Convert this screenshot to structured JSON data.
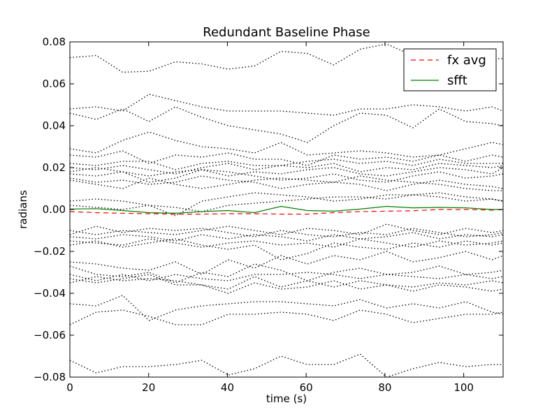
{
  "chart_data": {
    "type": "line",
    "title": "Redundant Baseline Phase",
    "xlabel": "time (s)",
    "ylabel": "radians",
    "xlim": [
      0,
      110
    ],
    "ylim": [
      -0.08,
      0.08
    ],
    "xticks": [
      0,
      20,
      40,
      60,
      80,
      100
    ],
    "yticks": [
      -0.08,
      -0.06,
      -0.04,
      -0.02,
      0.0,
      0.02,
      0.04,
      0.06,
      0.08
    ],
    "xtick_labels": [
      "0",
      "20",
      "40",
      "60",
      "80",
      "100"
    ],
    "ytick_labels": [
      "−0.08",
      "−0.06",
      "−0.04",
      "−0.02",
      "0.00",
      "0.02",
      "0.04",
      "0.06",
      "0.08"
    ],
    "grid": false,
    "legend_position": "top-right",
    "legend": [
      {
        "label": "fx avg",
        "style": "dashed",
        "color": "#ff0000"
      },
      {
        "label": "sfft",
        "style": "solid",
        "color": "#008000"
      }
    ],
    "x": [
      0,
      6.7,
      13.4,
      20.1,
      26.8,
      33.5,
      40.2,
      46.9,
      53.6,
      60.3,
      67,
      73.7,
      80.4,
      87.1,
      93.8,
      100.5,
      107.2,
      110
    ],
    "series": [
      {
        "name": "fx avg",
        "style": "dashed",
        "color": "#ff0000",
        "values": [
          -0.001,
          -0.0015,
          -0.0018,
          -0.002,
          -0.0022,
          -0.0022,
          -0.002,
          -0.002,
          -0.0022,
          -0.0022,
          -0.0015,
          -0.001,
          -0.0008,
          -0.0006,
          0.0,
          0.0,
          -0.0003,
          0.0
        ]
      },
      {
        "name": "sfft",
        "style": "solid",
        "color": "#008000",
        "values": [
          0.0002,
          0.0004,
          -0.0005,
          -0.0015,
          -0.0018,
          -0.001,
          -0.0005,
          -0.0015,
          0.0015,
          -0.0005,
          -0.0008,
          0.0002,
          0.0015,
          0.0008,
          0.001,
          0.0008,
          0.0,
          0.0
        ]
      },
      {
        "style": "dotted",
        "color": "#000000",
        "values": [
          0.0725,
          0.0735,
          0.0655,
          0.066,
          0.0705,
          0.0695,
          0.067,
          0.0685,
          0.0755,
          0.0745,
          0.069,
          0.0765,
          0.079,
          0.0735,
          0.074,
          0.074,
          0.072,
          0.072
        ]
      },
      {
        "style": "dotted",
        "color": "#000000",
        "values": [
          0.048,
          0.049,
          0.047,
          0.055,
          0.052,
          0.049,
          0.047,
          0.047,
          0.047,
          0.046,
          0.045,
          0.048,
          0.048,
          0.05,
          0.049,
          0.047,
          0.049,
          0.047
        ]
      },
      {
        "style": "dotted",
        "color": "#000000",
        "values": [
          0.046,
          0.043,
          0.048,
          0.042,
          0.049,
          0.044,
          0.04,
          0.038,
          0.036,
          0.032,
          0.04,
          0.046,
          0.045,
          0.039,
          0.048,
          0.042,
          0.041,
          0.04
        ]
      },
      {
        "style": "dotted",
        "color": "#000000",
        "values": [
          0.029,
          0.027,
          0.033,
          0.037,
          0.033,
          0.03,
          0.029,
          0.027,
          0.032,
          0.026,
          0.027,
          0.028,
          0.027,
          0.025,
          0.026,
          0.029,
          0.032,
          0.031
        ]
      },
      {
        "style": "dotted",
        "color": "#000000",
        "values": [
          0.026,
          0.025,
          0.028,
          0.022,
          0.026,
          0.025,
          0.027,
          0.024,
          0.024,
          0.021,
          0.026,
          0.024,
          0.025,
          0.023,
          0.026,
          0.023,
          0.026,
          0.025
        ]
      },
      {
        "style": "dotted",
        "color": "#000000",
        "values": [
          0.022,
          0.021,
          0.023,
          0.023,
          0.019,
          0.022,
          0.023,
          0.021,
          0.021,
          0.023,
          0.024,
          0.022,
          0.023,
          0.021,
          0.024,
          0.022,
          0.022,
          0.022
        ]
      },
      {
        "style": "dotted",
        "color": "#000000",
        "values": [
          0.02,
          0.019,
          0.021,
          0.019,
          0.017,
          0.02,
          0.022,
          0.019,
          0.021,
          0.02,
          0.022,
          0.018,
          0.02,
          0.019,
          0.022,
          0.021,
          0.02,
          0.021
        ]
      },
      {
        "style": "dotted",
        "color": "#000000",
        "values": [
          0.018,
          0.02,
          0.018,
          0.016,
          0.018,
          0.019,
          0.016,
          0.018,
          0.017,
          0.019,
          0.02,
          0.017,
          0.016,
          0.018,
          0.02,
          0.019,
          0.017,
          0.02
        ]
      },
      {
        "style": "dotted",
        "color": "#000000",
        "values": [
          0.017,
          0.016,
          0.018,
          0.013,
          0.015,
          0.019,
          0.018,
          0.016,
          0.014,
          0.015,
          0.017,
          0.014,
          0.013,
          0.016,
          0.018,
          0.015,
          0.016,
          0.017
        ]
      },
      {
        "style": "dotted",
        "color": "#000000",
        "values": [
          0.015,
          0.013,
          0.014,
          0.012,
          0.013,
          0.016,
          0.014,
          0.013,
          0.01,
          0.012,
          0.013,
          0.012,
          0.009,
          0.012,
          0.014,
          0.012,
          0.011,
          0.01
        ]
      },
      {
        "style": "dotted",
        "color": "#000000",
        "values": [
          0.014,
          0.012,
          0.01,
          0.015,
          0.012,
          0.01,
          0.012,
          0.014,
          0.015,
          0.014,
          0.013,
          0.016,
          0.014,
          0.013,
          0.012,
          0.01,
          0.009,
          0.009
        ]
      },
      {
        "style": "dotted",
        "color": "#000000",
        "values": [
          0.004,
          0.005,
          0.004,
          0.002,
          -0.003,
          0.004,
          0.006,
          0.008,
          0.007,
          0.006,
          0.004,
          0.005,
          0.007,
          0.007,
          0.006,
          0.004,
          0.005,
          0.004
        ]
      },
      {
        "style": "dotted",
        "color": "#000000",
        "values": [
          0.002,
          0.001,
          0.0,
          0.002,
          0.001,
          -0.001,
          0.002,
          0.003,
          0.004,
          0.005,
          0.006,
          0.006,
          0.005,
          0.007,
          0.008,
          0.006,
          0.005,
          0.004
        ]
      },
      {
        "style": "dotted",
        "color": "#000000",
        "values": [
          -0.01,
          -0.012,
          -0.01,
          -0.011,
          -0.012,
          -0.01,
          -0.008,
          -0.01,
          -0.012,
          -0.009,
          -0.01,
          -0.012,
          -0.007,
          -0.01,
          -0.012,
          -0.009,
          -0.011,
          -0.01
        ]
      },
      {
        "style": "dotted",
        "color": "#000000",
        "values": [
          -0.012,
          -0.008,
          -0.011,
          -0.009,
          -0.01,
          -0.009,
          -0.011,
          -0.013,
          -0.01,
          -0.012,
          -0.013,
          -0.011,
          -0.012,
          -0.009,
          -0.011,
          -0.013,
          -0.012,
          -0.011
        ]
      },
      {
        "style": "dotted",
        "color": "#000000",
        "values": [
          -0.013,
          -0.014,
          -0.012,
          -0.013,
          -0.015,
          -0.012,
          -0.014,
          -0.012,
          -0.013,
          -0.015,
          -0.012,
          -0.014,
          -0.013,
          -0.011,
          -0.014,
          -0.012,
          -0.013,
          -0.012
        ]
      },
      {
        "style": "dotted",
        "color": "#000000",
        "values": [
          -0.015,
          -0.016,
          -0.017,
          -0.014,
          -0.016,
          -0.018,
          -0.016,
          -0.015,
          -0.017,
          -0.016,
          -0.018,
          -0.014,
          -0.016,
          -0.018,
          -0.015,
          -0.017,
          -0.016,
          -0.015
        ]
      },
      {
        "style": "dotted",
        "color": "#000000",
        "values": [
          -0.017,
          -0.015,
          -0.018,
          -0.016,
          -0.014,
          -0.017,
          -0.019,
          -0.017,
          -0.024,
          -0.021,
          -0.016,
          -0.018,
          -0.019,
          -0.016,
          -0.018,
          -0.015,
          -0.017,
          -0.016
        ]
      },
      {
        "style": "dotted",
        "color": "#000000",
        "values": [
          -0.025,
          -0.026,
          -0.028,
          -0.029,
          -0.025,
          -0.031,
          -0.024,
          -0.028,
          -0.022,
          -0.026,
          -0.022,
          -0.024,
          -0.02,
          -0.025,
          -0.023,
          -0.02,
          -0.024,
          -0.022
        ]
      },
      {
        "style": "dotted",
        "color": "#000000",
        "values": [
          -0.027,
          -0.031,
          -0.032,
          -0.03,
          -0.035,
          -0.03,
          -0.032,
          -0.026,
          -0.029,
          -0.034,
          -0.03,
          -0.028,
          -0.031,
          -0.03,
          -0.027,
          -0.031,
          -0.03,
          -0.029
        ]
      },
      {
        "style": "dotted",
        "color": "#000000",
        "values": [
          -0.031,
          -0.034,
          -0.031,
          -0.034,
          -0.031,
          -0.033,
          -0.034,
          -0.031,
          -0.031,
          -0.03,
          -0.031,
          -0.033,
          -0.031,
          -0.032,
          -0.033,
          -0.031,
          -0.033,
          -0.032
        ]
      },
      {
        "style": "dotted",
        "color": "#000000",
        "values": [
          -0.033,
          -0.035,
          -0.033,
          -0.031,
          -0.036,
          -0.036,
          -0.038,
          -0.032,
          -0.037,
          -0.034,
          -0.037,
          -0.034,
          -0.036,
          -0.037,
          -0.035,
          -0.036,
          -0.034,
          -0.035
        ]
      },
      {
        "style": "dotted",
        "color": "#000000",
        "values": [
          -0.035,
          -0.032,
          -0.034,
          -0.033,
          -0.034,
          -0.036,
          -0.04,
          -0.035,
          -0.038,
          -0.037,
          -0.034,
          -0.038,
          -0.036,
          -0.039,
          -0.036,
          -0.037,
          -0.039,
          -0.038
        ]
      },
      {
        "style": "dotted",
        "color": "#000000",
        "values": [
          -0.045,
          -0.046,
          -0.041,
          -0.053,
          -0.048,
          -0.046,
          -0.045,
          -0.044,
          -0.044,
          -0.045,
          -0.046,
          -0.043,
          -0.047,
          -0.045,
          -0.047,
          -0.044,
          -0.049,
          -0.05
        ]
      },
      {
        "style": "dotted",
        "color": "#000000",
        "values": [
          -0.055,
          -0.049,
          -0.048,
          -0.051,
          -0.055,
          -0.055,
          -0.05,
          -0.05,
          -0.049,
          -0.05,
          -0.053,
          -0.048,
          -0.05,
          -0.054,
          -0.052,
          -0.05,
          -0.05,
          -0.049
        ]
      },
      {
        "style": "dotted",
        "color": "#000000",
        "values": [
          -0.072,
          -0.078,
          -0.075,
          -0.075,
          -0.074,
          -0.072,
          -0.079,
          -0.076,
          -0.07,
          -0.074,
          -0.074,
          -0.069,
          -0.08,
          -0.076,
          -0.073,
          -0.075,
          -0.074,
          -0.074
        ]
      }
    ]
  }
}
